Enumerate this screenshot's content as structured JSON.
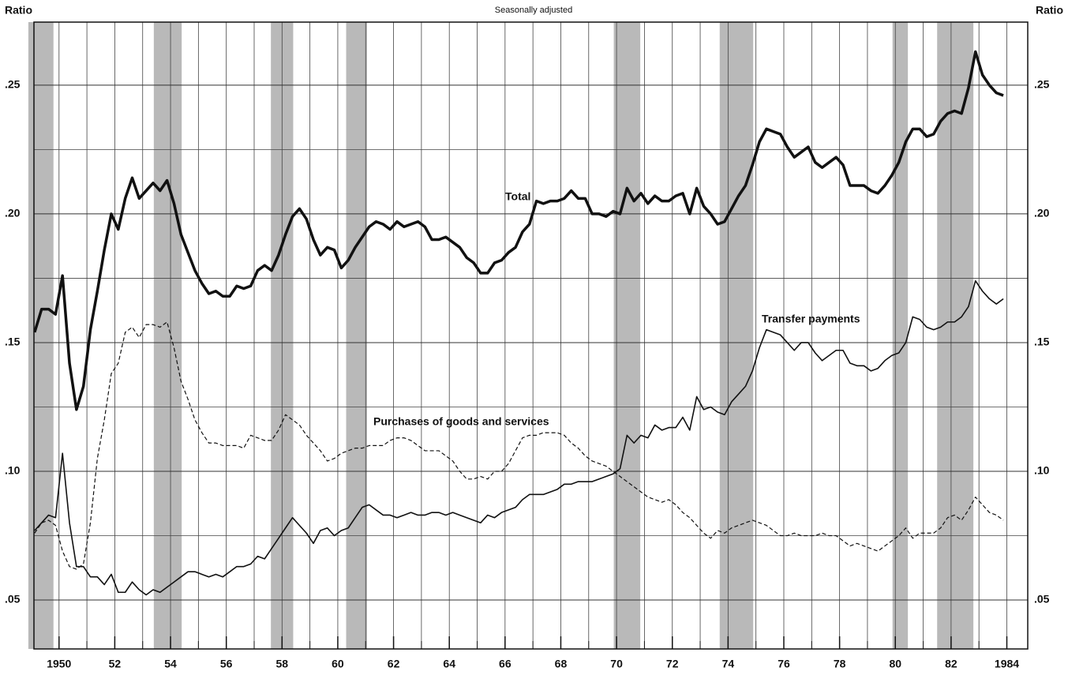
{
  "chart_data": {
    "type": "line",
    "subtitle": "Seasonally adjusted",
    "y_label": "Ratio",
    "xlim": [
      1949.1,
      1984.75
    ],
    "ylim": [
      0.031,
      0.2745
    ],
    "xticks": [
      {
        "value": 1950,
        "label": "1950"
      },
      {
        "value": 1952,
        "label": "52"
      },
      {
        "value": 1954,
        "label": "54"
      },
      {
        "value": 1956,
        "label": "56"
      },
      {
        "value": 1958,
        "label": "58"
      },
      {
        "value": 1960,
        "label": "60"
      },
      {
        "value": 1962,
        "label": "62"
      },
      {
        "value": 1964,
        "label": "64"
      },
      {
        "value": 1966,
        "label": "66"
      },
      {
        "value": 1968,
        "label": "68"
      },
      {
        "value": 1970,
        "label": "70"
      },
      {
        "value": 1972,
        "label": "72"
      },
      {
        "value": 1974,
        "label": "74"
      },
      {
        "value": 1976,
        "label": "76"
      },
      {
        "value": 1978,
        "label": "78"
      },
      {
        "value": 1980,
        "label": "80"
      },
      {
        "value": 1982,
        "label": "82"
      },
      {
        "value": 1984,
        "label": "1984"
      }
    ],
    "x_gridlines": [
      1950,
      1951,
      1952,
      1953,
      1954,
      1955,
      1956,
      1957,
      1958,
      1959,
      1960,
      1961,
      1962,
      1963,
      1964,
      1965,
      1966,
      1967,
      1968,
      1969,
      1970,
      1971,
      1972,
      1973,
      1974,
      1975,
      1976,
      1977,
      1978,
      1979,
      1980,
      1981,
      1982,
      1983,
      1984
    ],
    "yticks": [
      {
        "value": 0.05,
        "label": ".05"
      },
      {
        "value": 0.1,
        "label": ".10"
      },
      {
        "value": 0.15,
        "label": ".15"
      },
      {
        "value": 0.2,
        "label": ".20"
      },
      {
        "value": 0.25,
        "label": ".25"
      }
    ],
    "y_minor_gridlines": [
      0.075,
      0.125,
      0.175,
      0.225
    ],
    "grid": true,
    "recession_color": "#b9b9b9",
    "recessions": [
      [
        1948.9,
        1949.8
      ],
      [
        1953.4,
        1954.4
      ],
      [
        1957.6,
        1958.4
      ],
      [
        1960.3,
        1961.05
      ],
      [
        1969.9,
        1970.85
      ],
      [
        1973.7,
        1974.9
      ],
      [
        1979.9,
        1980.45
      ],
      [
        1981.5,
        1982.8
      ]
    ],
    "x": [
      1949.125,
      1949.375,
      1949.625,
      1949.875,
      1950.125,
      1950.375,
      1950.625,
      1950.875,
      1951.125,
      1951.375,
      1951.625,
      1951.875,
      1952.125,
      1952.375,
      1952.625,
      1952.875,
      1953.125,
      1953.375,
      1953.625,
      1953.875,
      1954.125,
      1954.375,
      1954.625,
      1954.875,
      1955.125,
      1955.375,
      1955.625,
      1955.875,
      1956.125,
      1956.375,
      1956.625,
      1956.875,
      1957.125,
      1957.375,
      1957.625,
      1957.875,
      1958.125,
      1958.375,
      1958.625,
      1958.875,
      1959.125,
      1959.375,
      1959.625,
      1959.875,
      1960.125,
      1960.375,
      1960.625,
      1960.875,
      1961.125,
      1961.375,
      1961.625,
      1961.875,
      1962.125,
      1962.375,
      1962.625,
      1962.875,
      1963.125,
      1963.375,
      1963.625,
      1963.875,
      1964.125,
      1964.375,
      1964.625,
      1964.875,
      1965.125,
      1965.375,
      1965.625,
      1965.875,
      1966.125,
      1966.375,
      1966.625,
      1966.875,
      1967.125,
      1967.375,
      1967.625,
      1967.875,
      1968.125,
      1968.375,
      1968.625,
      1968.875,
      1969.125,
      1969.375,
      1969.625,
      1969.875,
      1970.125,
      1970.375,
      1970.625,
      1970.875,
      1971.125,
      1971.375,
      1971.625,
      1971.875,
      1972.125,
      1972.375,
      1972.625,
      1972.875,
      1973.125,
      1973.375,
      1973.625,
      1973.875,
      1974.125,
      1974.375,
      1974.625,
      1974.875,
      1975.125,
      1975.375,
      1975.625,
      1975.875,
      1976.125,
      1976.375,
      1976.625,
      1976.875,
      1977.125,
      1977.375,
      1977.625,
      1977.875,
      1978.125,
      1978.375,
      1978.625,
      1978.875,
      1979.125,
      1979.375,
      1979.625,
      1979.875,
      1980.125,
      1980.375,
      1980.625,
      1980.875,
      1981.125,
      1981.375,
      1981.625,
      1981.875,
      1982.125,
      1982.375,
      1982.625,
      1982.875,
      1983.125,
      1983.375,
      1983.625,
      1983.875
    ],
    "series": [
      {
        "name": "Total",
        "color": "#111111",
        "width": 3.5,
        "dash": false,
        "values": [
          0.154,
          0.163,
          0.163,
          0.161,
          0.176,
          0.142,
          0.124,
          0.133,
          0.155,
          0.17,
          0.186,
          0.2,
          0.194,
          0.206,
          0.214,
          0.206,
          0.209,
          0.212,
          0.209,
          0.213,
          0.204,
          0.192,
          0.185,
          0.178,
          0.173,
          0.169,
          0.17,
          0.168,
          0.168,
          0.172,
          0.171,
          0.172,
          0.178,
          0.18,
          0.178,
          0.184,
          0.192,
          0.199,
          0.202,
          0.198,
          0.19,
          0.184,
          0.187,
          0.186,
          0.179,
          0.182,
          0.187,
          0.191,
          0.195,
          0.197,
          0.196,
          0.194,
          0.197,
          0.195,
          0.196,
          0.197,
          0.195,
          0.19,
          0.19,
          0.191,
          0.189,
          0.187,
          0.183,
          0.181,
          0.177,
          0.177,
          0.181,
          0.182,
          0.185,
          0.187,
          0.193,
          0.196,
          0.205,
          0.204,
          0.205,
          0.205,
          0.206,
          0.209,
          0.206,
          0.206,
          0.2,
          0.2,
          0.199,
          0.201,
          0.2,
          0.21,
          0.205,
          0.208,
          0.204,
          0.207,
          0.205,
          0.205,
          0.207,
          0.208,
          0.2,
          0.21,
          0.203,
          0.2,
          0.196,
          0.197,
          0.202,
          0.207,
          0.211,
          0.219,
          0.228,
          0.233,
          0.232,
          0.231,
          0.226,
          0.222,
          0.224,
          0.226,
          0.22,
          0.218,
          0.22,
          0.222,
          0.219,
          0.211,
          0.211,
          0.211,
          0.209,
          0.208,
          0.211,
          0.215,
          0.22,
          0.228,
          0.233,
          0.233,
          0.23,
          0.231,
          0.236,
          0.239,
          0.24,
          0.239,
          0.249,
          0.263,
          0.254,
          0.25,
          0.247,
          0.246
        ]
      },
      {
        "name": "Transfer payments",
        "color": "#111111",
        "width": 1.6,
        "dash": false,
        "values": [
          0.077,
          0.08,
          0.083,
          0.082,
          0.107,
          0.08,
          0.063,
          0.063,
          0.059,
          0.059,
          0.056,
          0.06,
          0.053,
          0.053,
          0.057,
          0.054,
          0.052,
          0.054,
          0.053,
          0.055,
          0.057,
          0.059,
          0.061,
          0.061,
          0.06,
          0.059,
          0.06,
          0.059,
          0.061,
          0.063,
          0.063,
          0.064,
          0.067,
          0.066,
          0.07,
          0.074,
          0.078,
          0.082,
          0.079,
          0.076,
          0.072,
          0.077,
          0.078,
          0.075,
          0.077,
          0.078,
          0.082,
          0.086,
          0.087,
          0.085,
          0.083,
          0.083,
          0.082,
          0.083,
          0.084,
          0.083,
          0.083,
          0.084,
          0.084,
          0.083,
          0.084,
          0.083,
          0.082,
          0.081,
          0.08,
          0.083,
          0.082,
          0.084,
          0.085,
          0.086,
          0.089,
          0.091,
          0.091,
          0.091,
          0.092,
          0.093,
          0.095,
          0.095,
          0.096,
          0.096,
          0.096,
          0.097,
          0.098,
          0.099,
          0.101,
          0.114,
          0.111,
          0.114,
          0.113,
          0.118,
          0.116,
          0.117,
          0.117,
          0.121,
          0.116,
          0.129,
          0.124,
          0.125,
          0.123,
          0.122,
          0.127,
          0.13,
          0.133,
          0.139,
          0.148,
          0.155,
          0.154,
          0.153,
          0.15,
          0.147,
          0.15,
          0.15,
          0.146,
          0.143,
          0.145,
          0.147,
          0.147,
          0.142,
          0.141,
          0.141,
          0.139,
          0.14,
          0.143,
          0.145,
          0.146,
          0.15,
          0.16,
          0.159,
          0.156,
          0.155,
          0.156,
          0.158,
          0.158,
          0.16,
          0.164,
          0.174,
          0.17,
          0.167,
          0.165,
          0.167
        ]
      },
      {
        "name": "Purchases of goods and services",
        "color": "#111111",
        "width": 1.2,
        "dash": true,
        "values": [
          0.076,
          0.08,
          0.081,
          0.079,
          0.069,
          0.063,
          0.062,
          0.064,
          0.08,
          0.105,
          0.12,
          0.138,
          0.142,
          0.154,
          0.156,
          0.152,
          0.157,
          0.157,
          0.156,
          0.158,
          0.148,
          0.135,
          0.128,
          0.12,
          0.115,
          0.111,
          0.111,
          0.11,
          0.11,
          0.11,
          0.109,
          0.114,
          0.113,
          0.112,
          0.112,
          0.116,
          0.122,
          0.12,
          0.118,
          0.114,
          0.111,
          0.108,
          0.104,
          0.105,
          0.107,
          0.108,
          0.109,
          0.109,
          0.11,
          0.11,
          0.11,
          0.112,
          0.113,
          0.113,
          0.112,
          0.11,
          0.108,
          0.108,
          0.108,
          0.106,
          0.104,
          0.1,
          0.097,
          0.097,
          0.098,
          0.097,
          0.1,
          0.1,
          0.103,
          0.108,
          0.113,
          0.114,
          0.114,
          0.115,
          0.115,
          0.115,
          0.114,
          0.111,
          0.109,
          0.106,
          0.104,
          0.103,
          0.102,
          0.1,
          0.098,
          0.096,
          0.094,
          0.092,
          0.09,
          0.089,
          0.088,
          0.089,
          0.087,
          0.084,
          0.082,
          0.079,
          0.076,
          0.074,
          0.077,
          0.076,
          0.078,
          0.079,
          0.08,
          0.081,
          0.08,
          0.079,
          0.077,
          0.075,
          0.075,
          0.076,
          0.075,
          0.075,
          0.075,
          0.076,
          0.075,
          0.075,
          0.073,
          0.071,
          0.072,
          0.071,
          0.07,
          0.069,
          0.071,
          0.073,
          0.075,
          0.078,
          0.074,
          0.076,
          0.076,
          0.076,
          0.078,
          0.082,
          0.083,
          0.081,
          0.085,
          0.09,
          0.087,
          0.084,
          0.083,
          0.081
        ]
      }
    ],
    "annotations": [
      "Total",
      "Transfer payments",
      "Purchases of goods and services"
    ]
  }
}
